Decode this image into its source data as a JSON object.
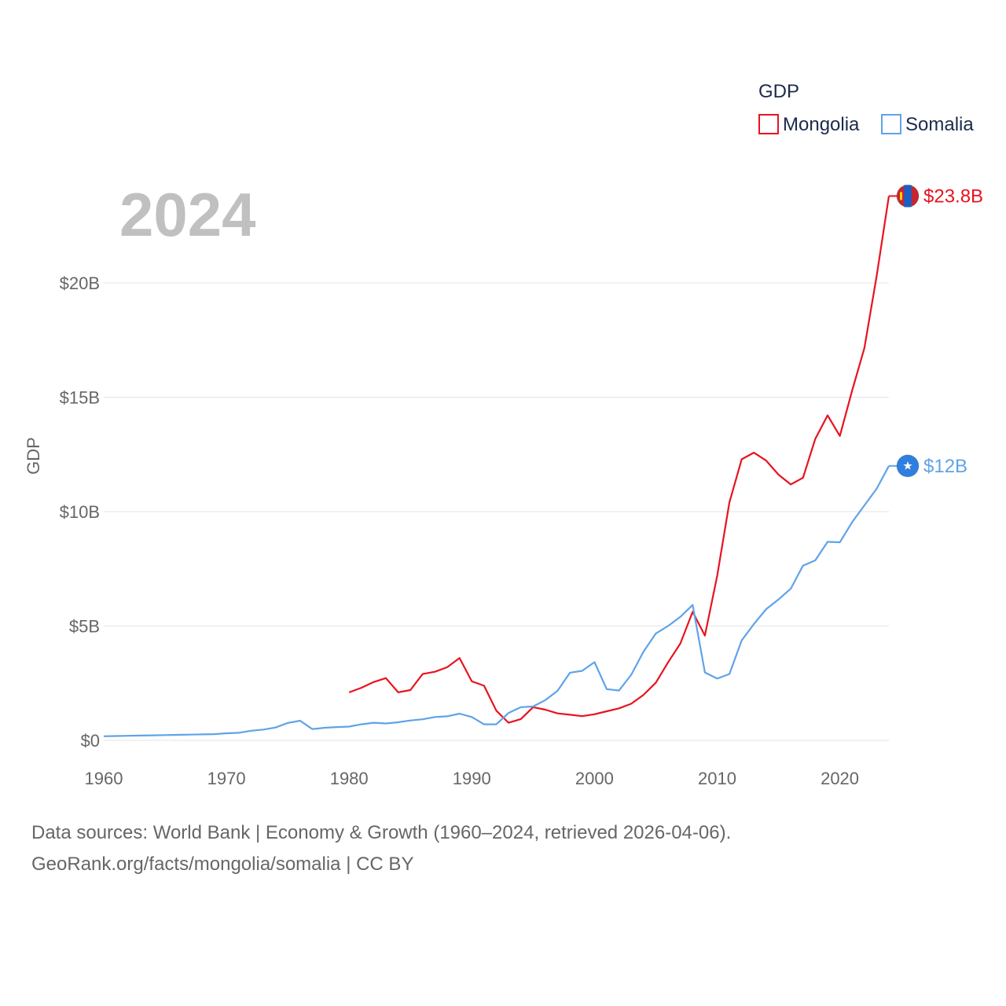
{
  "chart_data": {
    "type": "line",
    "year_label": "2024",
    "ylabel": "GDP",
    "legend_title": "GDP",
    "ylim": [
      0,
      25000000000
    ],
    "xlim": [
      1960,
      2024
    ],
    "y_ticks": [
      {
        "value": 0,
        "label": "$0"
      },
      {
        "value": 5000000000,
        "label": "$5B"
      },
      {
        "value": 10000000000,
        "label": "$10B"
      },
      {
        "value": 15000000000,
        "label": "$15B"
      },
      {
        "value": 20000000000,
        "label": "$20B"
      }
    ],
    "x_ticks": [
      {
        "value": 1960,
        "label": "1960"
      },
      {
        "value": 1970,
        "label": "1970"
      },
      {
        "value": 1980,
        "label": "1980"
      },
      {
        "value": 1990,
        "label": "1990"
      },
      {
        "value": 2000,
        "label": "2000"
      },
      {
        "value": 2010,
        "label": "2010"
      },
      {
        "value": 2020,
        "label": "2020"
      }
    ],
    "series": [
      {
        "name": "Mongolia",
        "color": "#e8131f",
        "end_label": "$23.8B",
        "flag": "mongolia-flag",
        "points": [
          [
            1980,
            2.1
          ],
          [
            1981,
            2.3
          ],
          [
            1982,
            2.55
          ],
          [
            1983,
            2.72
          ],
          [
            1984,
            2.1
          ],
          [
            1985,
            2.2
          ],
          [
            1986,
            2.9
          ],
          [
            1987,
            3.0
          ],
          [
            1988,
            3.2
          ],
          [
            1989,
            3.6
          ],
          [
            1990,
            2.58
          ],
          [
            1991,
            2.39
          ],
          [
            1992,
            1.3
          ],
          [
            1993,
            0.77
          ],
          [
            1994,
            0.93
          ],
          [
            1995,
            1.45
          ],
          [
            1996,
            1.34
          ],
          [
            1997,
            1.18
          ],
          [
            1998,
            1.12
          ],
          [
            1999,
            1.06
          ],
          [
            2000,
            1.14
          ],
          [
            2001,
            1.27
          ],
          [
            2002,
            1.4
          ],
          [
            2003,
            1.6
          ],
          [
            2004,
            1.99
          ],
          [
            2005,
            2.52
          ],
          [
            2006,
            3.41
          ],
          [
            2007,
            4.23
          ],
          [
            2008,
            5.62
          ],
          [
            2009,
            4.58
          ],
          [
            2010,
            7.19
          ],
          [
            2011,
            10.41
          ],
          [
            2012,
            12.29
          ],
          [
            2013,
            12.58
          ],
          [
            2014,
            12.23
          ],
          [
            2015,
            11.62
          ],
          [
            2016,
            11.19
          ],
          [
            2017,
            11.48
          ],
          [
            2018,
            13.18
          ],
          [
            2019,
            14.21
          ],
          [
            2020,
            13.31
          ],
          [
            2021,
            15.29
          ],
          [
            2022,
            17.15
          ],
          [
            2023,
            20.3
          ],
          [
            2024,
            23.8
          ]
        ]
      },
      {
        "name": "Somalia",
        "color": "#5fa3e8",
        "end_label": "$12B",
        "flag": "somalia-flag",
        "points": [
          [
            1960,
            0.18
          ],
          [
            1961,
            0.19
          ],
          [
            1962,
            0.2
          ],
          [
            1963,
            0.21
          ],
          [
            1964,
            0.22
          ],
          [
            1965,
            0.23
          ],
          [
            1966,
            0.24
          ],
          [
            1967,
            0.25
          ],
          [
            1968,
            0.26
          ],
          [
            1969,
            0.27
          ],
          [
            1970,
            0.31
          ],
          [
            1971,
            0.33
          ],
          [
            1972,
            0.42
          ],
          [
            1973,
            0.47
          ],
          [
            1974,
            0.56
          ],
          [
            1975,
            0.76
          ],
          [
            1976,
            0.86
          ],
          [
            1977,
            0.49
          ],
          [
            1978,
            0.55
          ],
          [
            1979,
            0.58
          ],
          [
            1980,
            0.6
          ],
          [
            1981,
            0.7
          ],
          [
            1982,
            0.77
          ],
          [
            1983,
            0.74
          ],
          [
            1984,
            0.79
          ],
          [
            1985,
            0.87
          ],
          [
            1986,
            0.92
          ],
          [
            1987,
            1.02
          ],
          [
            1988,
            1.05
          ],
          [
            1989,
            1.17
          ],
          [
            1990,
            1.02
          ],
          [
            1991,
            0.7
          ],
          [
            1992,
            0.7
          ],
          [
            1993,
            1.2
          ],
          [
            1994,
            1.45
          ],
          [
            1995,
            1.48
          ],
          [
            1996,
            1.76
          ],
          [
            1997,
            2.17
          ],
          [
            1998,
            2.96
          ],
          [
            1999,
            3.04
          ],
          [
            2000,
            3.42
          ],
          [
            2001,
            2.24
          ],
          [
            2002,
            2.18
          ],
          [
            2003,
            2.87
          ],
          [
            2004,
            3.88
          ],
          [
            2005,
            4.67
          ],
          [
            2006,
            5.0
          ],
          [
            2007,
            5.4
          ],
          [
            2008,
            5.92
          ],
          [
            2009,
            2.97
          ],
          [
            2010,
            2.7
          ],
          [
            2011,
            2.9
          ],
          [
            2012,
            4.37
          ],
          [
            2013,
            5.09
          ],
          [
            2014,
            5.74
          ],
          [
            2015,
            6.16
          ],
          [
            2016,
            6.63
          ],
          [
            2017,
            7.64
          ],
          [
            2018,
            7.87
          ],
          [
            2019,
            8.68
          ],
          [
            2020,
            8.66
          ],
          [
            2021,
            9.54
          ],
          [
            2022,
            10.27
          ],
          [
            2023,
            11.0
          ],
          [
            2024,
            12.0
          ]
        ]
      }
    ]
  },
  "source": {
    "line1": "Data sources: World Bank | Economy & Growth (1960–2024, retrieved 2026-04-06).",
    "line2": "GeoRank.org/facts/mongolia/somalia | CC BY"
  }
}
